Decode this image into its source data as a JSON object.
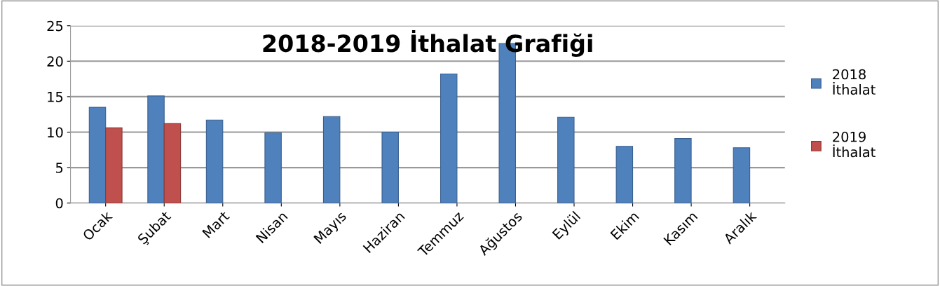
{
  "chart_data": {
    "type": "bar",
    "title": "2018-2019 İthalat Grafiği",
    "categories": [
      "Ocak",
      "Şubat",
      "Mart",
      "Nisan",
      "Mayıs",
      "Haziran",
      "Temmuz",
      "Ağustos",
      "Eylül",
      "Ekim",
      "Kasım",
      "Aralık"
    ],
    "series": [
      {
        "name": "2018\nİthalat",
        "color": "#4f81bd",
        "values": [
          13.5,
          15.1,
          11.7,
          9.9,
          12.2,
          10.0,
          18.2,
          22.5,
          12.1,
          8.0,
          9.1,
          7.8
        ]
      },
      {
        "name": "2019\nİthalat",
        "color": "#c0504d",
        "values": [
          10.6,
          11.2,
          null,
          null,
          null,
          null,
          null,
          null,
          null,
          null,
          null,
          null
        ]
      }
    ],
    "ylim": [
      0,
      25
    ],
    "yticks": [
      0,
      5,
      10,
      15,
      20,
      25
    ],
    "grid": "y",
    "legend": "right"
  }
}
